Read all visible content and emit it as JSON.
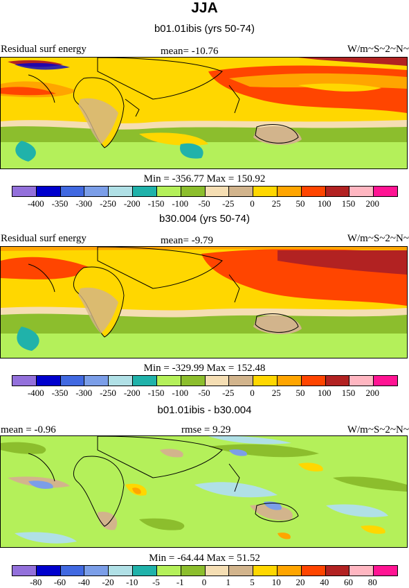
{
  "title": "JJA",
  "panels": [
    {
      "subtitle": "b01.01ibis (yrs 50-74)",
      "left_label": "Residual surf energy",
      "center_label": "mean=  -10.76",
      "right_label": "W/m~S~2~N~",
      "minmax": "Min = -356.77 Max = 150.92",
      "scale": "levels_main"
    },
    {
      "subtitle": "b30.004 (yrs 50-74)",
      "left_label": "Residual surf energy",
      "center_label": "mean=   -9.79",
      "right_label": "W/m~S~2~N~",
      "minmax": "Min = -329.99 Max = 152.48",
      "scale": "levels_main"
    },
    {
      "subtitle": "b01.01ibis - b30.004",
      "left_label": "mean =  -0.96",
      "center_label": "rmse =   9.29",
      "right_label": "W/m~S~2~N~",
      "minmax": "Min = -64.44 Max =  51.52",
      "scale": "levels_diff"
    }
  ],
  "colorbar_colors": [
    "#9370db",
    "#0000cd",
    "#4169e1",
    "#7b9ee8",
    "#b0e0e6",
    "#20b2aa",
    "#b4f05a",
    "#8cbe2d",
    "#f5deb3",
    "#d2b48c",
    "#ffd700",
    "#ffa500",
    "#ff4500",
    "#b22222",
    "#ffb6c1",
    "#ff1493"
  ],
  "levels_main": [
    "-400",
    "-350",
    "-300",
    "-250",
    "-200",
    "-150",
    "-100",
    "-50",
    "-25",
    "0",
    "25",
    "50",
    "100",
    "150",
    "200"
  ],
  "levels_diff": [
    "-80",
    "-60",
    "-40",
    "-20",
    "-10",
    "-5",
    "-1",
    "0",
    "1",
    "5",
    "10",
    "20",
    "40",
    "60",
    "80"
  ]
}
